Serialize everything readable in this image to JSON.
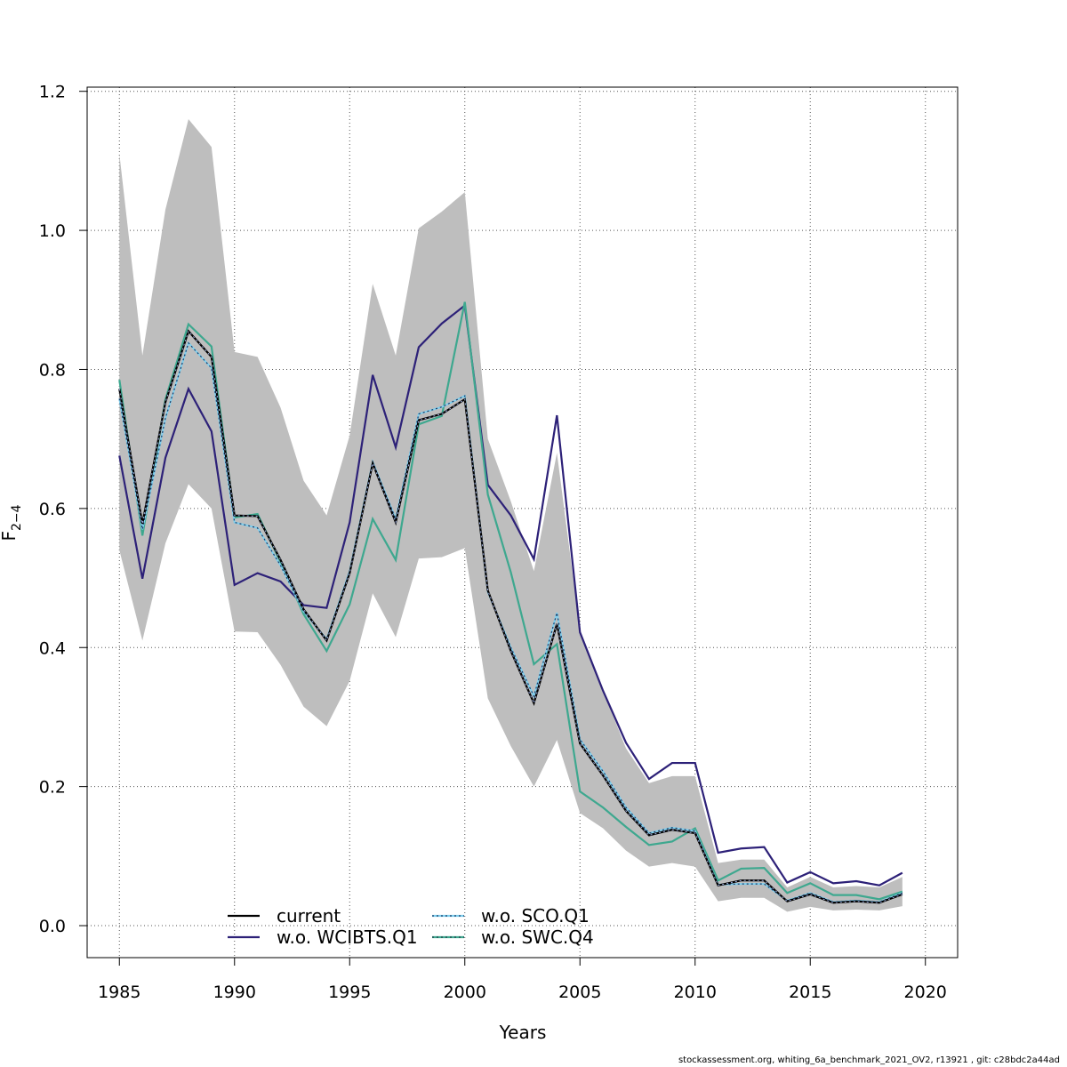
{
  "chart_data": {
    "type": "line",
    "title": "",
    "xlabel": "Years",
    "ylabel_main": "F",
    "ylabel_sub": "2−4",
    "xlim": [
      1983.6,
      2021.4
    ],
    "ylim": [
      -0.046,
      1.206
    ],
    "x_ticks": [
      1985,
      1990,
      1995,
      2000,
      2005,
      2010,
      2015,
      2020
    ],
    "y_ticks": [
      0.0,
      0.2,
      0.4,
      0.6,
      0.8,
      1.0,
      1.2
    ],
    "y_tick_labels": [
      "0.0",
      "0.2",
      "0.4",
      "0.6",
      "0.8",
      "1.0",
      "1.2"
    ],
    "grid": true,
    "legend_position": "bottom",
    "x": [
      1985,
      1986,
      1987,
      1988,
      1989,
      1990,
      1991,
      1992,
      1993,
      1994,
      1995,
      1996,
      1997,
      1998,
      1999,
      2000,
      2001,
      2002,
      2003,
      2004,
      2005,
      2006,
      2007,
      2008,
      2009,
      2010,
      2011,
      2012,
      2013,
      2014,
      2015,
      2016,
      2017,
      2018,
      2019
    ],
    "band": {
      "upper": [
        1.11,
        0.82,
        1.03,
        1.16,
        1.12,
        0.825,
        0.818,
        0.745,
        0.64,
        0.59,
        0.705,
        0.923,
        0.82,
        1.003,
        1.027,
        1.055,
        0.7,
        0.61,
        0.51,
        0.68,
        0.425,
        0.338,
        0.255,
        0.205,
        0.215,
        0.215,
        0.09,
        0.095,
        0.095,
        0.055,
        0.07,
        0.055,
        0.057,
        0.055,
        0.07
      ],
      "lower": [
        0.54,
        0.41,
        0.55,
        0.635,
        0.6,
        0.423,
        0.422,
        0.375,
        0.315,
        0.287,
        0.352,
        0.478,
        0.415,
        0.528,
        0.53,
        0.543,
        0.327,
        0.258,
        0.2,
        0.267,
        0.162,
        0.14,
        0.108,
        0.085,
        0.09,
        0.085,
        0.035,
        0.04,
        0.04,
        0.02,
        0.027,
        0.022,
        0.023,
        0.022,
        0.028
      ]
    },
    "series": [
      {
        "name": "current",
        "color": "#000000",
        "values": [
          0.772,
          0.578,
          0.753,
          0.855,
          0.818,
          0.59,
          0.589,
          0.526,
          0.455,
          0.41,
          0.507,
          0.665,
          0.58,
          0.727,
          0.736,
          0.757,
          0.482,
          0.395,
          0.32,
          0.434,
          0.262,
          0.216,
          0.165,
          0.13,
          0.138,
          0.133,
          0.058,
          0.065,
          0.065,
          0.035,
          0.045,
          0.033,
          0.035,
          0.033,
          0.045
        ]
      },
      {
        "name": "w.o. WCIBTS.Q1",
        "color": "#2d2178",
        "values": [
          0.676,
          0.499,
          0.673,
          0.772,
          0.711,
          0.49,
          0.507,
          0.495,
          0.461,
          0.457,
          0.58,
          0.792,
          0.688,
          0.832,
          0.866,
          0.892,
          0.634,
          0.59,
          0.527,
          0.734,
          0.422,
          0.338,
          0.263,
          0.211,
          0.234,
          0.234,
          0.105,
          0.111,
          0.113,
          0.062,
          0.077,
          0.061,
          0.064,
          0.058,
          0.076
        ]
      },
      {
        "name": "w.o. SCO.Q1",
        "color": "#7fcfee",
        "values": [
          0.758,
          0.57,
          0.73,
          0.838,
          0.802,
          0.58,
          0.572,
          0.518,
          0.452,
          0.412,
          0.51,
          0.667,
          0.585,
          0.736,
          0.746,
          0.762,
          0.48,
          0.4,
          0.33,
          0.45,
          0.268,
          0.222,
          0.17,
          0.133,
          0.141,
          0.136,
          0.059,
          0.06,
          0.06,
          0.036,
          0.047,
          0.034,
          0.036,
          0.034,
          0.047
        ]
      },
      {
        "name": "w.o. SWC.Q4",
        "color": "#3ea88f",
        "values": [
          0.785,
          0.561,
          0.757,
          0.865,
          0.833,
          0.587,
          0.592,
          0.523,
          0.448,
          0.395,
          0.462,
          0.585,
          0.526,
          0.721,
          0.733,
          0.897,
          0.62,
          0.508,
          0.376,
          0.405,
          0.193,
          0.17,
          0.142,
          0.116,
          0.121,
          0.14,
          0.065,
          0.082,
          0.083,
          0.047,
          0.061,
          0.044,
          0.044,
          0.038,
          0.049
        ]
      }
    ]
  },
  "footer_text": "stockassessment.org, whiting_6a_benchmark_2021_OV2, r13921 , git: c28bdc2a44ad"
}
